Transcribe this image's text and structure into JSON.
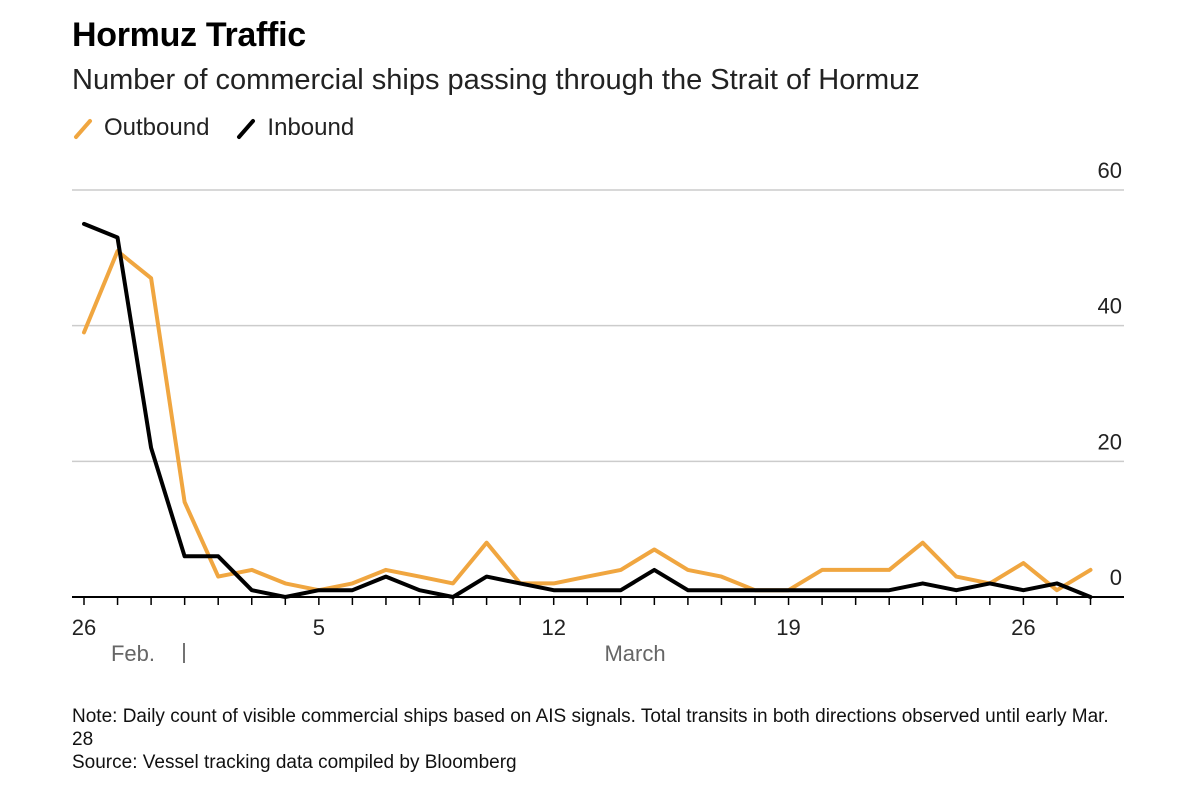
{
  "chart_data": {
    "type": "line",
    "title": "Hormuz Traffic",
    "subtitle": "Number of commercial ships passing through the Strait of Hormuz",
    "x_tick_labels": [
      "26",
      "5",
      "12",
      "19",
      "26"
    ],
    "month_labels": [
      "Feb.",
      "March"
    ],
    "y_ticks": [
      0,
      20,
      40,
      60
    ],
    "ylim": [
      0,
      60
    ],
    "x_start": "Feb. 26",
    "series": [
      {
        "name": "Outbound",
        "color": "#f0a640",
        "values": [
          39,
          51,
          47,
          14,
          3,
          4,
          2,
          1,
          2,
          4,
          3,
          2,
          8,
          2,
          2,
          3,
          4,
          7,
          4,
          3,
          1,
          1,
          4,
          4,
          4,
          8,
          3,
          2,
          5,
          1,
          4
        ]
      },
      {
        "name": "Inbound",
        "color": "#000000",
        "values": [
          55,
          53,
          22,
          6,
          6,
          1,
          0,
          1,
          1,
          3,
          1,
          0,
          3,
          2,
          1,
          1,
          1,
          4,
          1,
          1,
          1,
          1,
          1,
          1,
          1,
          2,
          1,
          2,
          1,
          2,
          0
        ]
      }
    ]
  },
  "notes": {
    "note": "Note: Daily count of visible commercial ships based on AIS signals. Total transits in both directions observed until early Mar. 28",
    "source": "Source: Vessel tracking data compiled by Bloomberg"
  }
}
